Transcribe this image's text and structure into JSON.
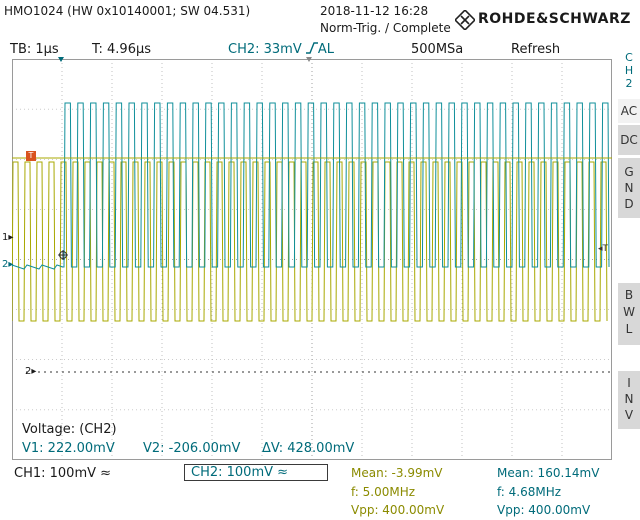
{
  "device": {
    "model_info": "HMO1024 (HW 0x10140001; SW 04.531)",
    "datetime": "2018-11-12 16:28",
    "trigger_status": "Norm-Trig. / Complete",
    "brand": "ROHDE&SCHWARZ"
  },
  "status_bar": {
    "timebase": "TB: 1µs",
    "trigger_time": "T: 4.96µs",
    "ch2_trigger": "CH2: 33mV",
    "ch2_trigger_mode": "AL",
    "sample_rate": "500MSa",
    "acq_mode": "Refresh"
  },
  "side_panel": {
    "channel": [
      "C",
      "H",
      "2"
    ],
    "ac": "AC",
    "dc": "DC",
    "gnd": [
      "G",
      "N",
      "D"
    ],
    "bwl": [
      "B",
      "W",
      "L"
    ],
    "inv": [
      "I",
      "N",
      "V"
    ]
  },
  "markers": {
    "ch1": "1",
    "ch2": "2",
    "ch2_ref": "2",
    "trigger_t": "T"
  },
  "cursor_panel": {
    "label": "Voltage: (CH2)",
    "v1": "V1: 222.00mV",
    "v2": "V2: -206.00mV",
    "dv": "ΔV: 428.00mV"
  },
  "bottom": {
    "ch1": "CH1: 100mV ≈",
    "ch2": "CH2: 100mV ≈",
    "ch1_mean": "Mean: -3.99mV",
    "ch1_freq": "f: 5.00MHz",
    "ch1_vpp": "Vpp: 400.00mV",
    "ch2_mean": "Mean: 160.14mV",
    "ch2_freq": "f: 4.68MHz",
    "ch2_vpp": "Vpp: 400.00mV"
  },
  "colors": {
    "ch1": "#a8a800",
    "ch2": "#0f8f9a",
    "grid": "#9a9a9a",
    "status_ch2": "#006b7a"
  }
}
